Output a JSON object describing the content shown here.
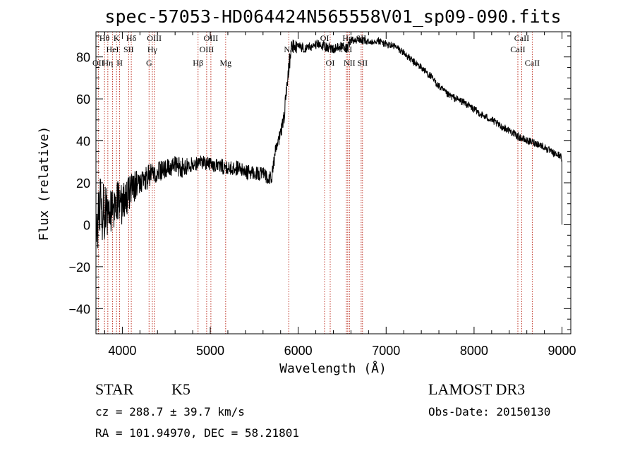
{
  "chart_data": {
    "type": "line",
    "title": "spec-57053-HD064424N565558V01_sp09-090.fits",
    "xlabel": "Wavelength (Å)",
    "ylabel": "Flux (relative)",
    "xlim": [
      3700,
      9100
    ],
    "ylim": [
      -52,
      92
    ],
    "x_ticks": [
      4000,
      5000,
      6000,
      7000,
      8000,
      9000
    ],
    "y_ticks": [
      -40,
      -20,
      0,
      20,
      40,
      60,
      80
    ],
    "grid": false,
    "spectrum_anchors": {
      "x": [
        3700,
        3750,
        3800,
        3850,
        3900,
        3950,
        4000,
        4050,
        4100,
        4200,
        4300,
        4400,
        4500,
        4600,
        4700,
        4800,
        4900,
        5000,
        5100,
        5200,
        5300,
        5400,
        5500,
        5600,
        5700,
        5720,
        5760,
        5800,
        5840,
        5880,
        5920,
        6000,
        6100,
        6200,
        6300,
        6400,
        6500,
        6560,
        6600,
        6700,
        6800,
        6900,
        7000,
        7100,
        7200,
        7300,
        7400,
        7500,
        7600,
        7700,
        7800,
        7900,
        8000,
        8100,
        8200,
        8300,
        8400,
        8500,
        8600,
        8700,
        8800,
        8900,
        8980,
        9000
      ],
      "y": [
        -2,
        8,
        5,
        10,
        7,
        12,
        9,
        14,
        17,
        20,
        23,
        25,
        27,
        28,
        27,
        29,
        30,
        29,
        28,
        27,
        27,
        25,
        25,
        24,
        22,
        30,
        38,
        43,
        52,
        70,
        84,
        85,
        84,
        86,
        85,
        84,
        85,
        84,
        88,
        88,
        87,
        88,
        86,
        85,
        82,
        78,
        75,
        71,
        66,
        62,
        60,
        58,
        55,
        52,
        50,
        47,
        45,
        42,
        40,
        39,
        37,
        34,
        33,
        31
      ],
      "noise": [
        12,
        12,
        12,
        11,
        10,
        9,
        8,
        8,
        7,
        5,
        5,
        4,
        4,
        4,
        4,
        3,
        3,
        3,
        3,
        3,
        3,
        3,
        3,
        3,
        3,
        3,
        3,
        3,
        3,
        4,
        4,
        2,
        2,
        2,
        2,
        2,
        2,
        2,
        1.5,
        1.5,
        1.5,
        1.5,
        1.5,
        1.5,
        1.5,
        1.5,
        1.5,
        1.5,
        1.5,
        1.5,
        1.5,
        1.5,
        1.5,
        1.5,
        1.5,
        1.5,
        1.5,
        1.5,
        1.5,
        1.5,
        1.5,
        1.5,
        1.5,
        1.5
      ]
    },
    "spectral_lines": [
      {
        "label": "OII",
        "wavelength": 3727,
        "row": 2
      },
      {
        "label": "Hθ",
        "wavelength": 3797,
        "row": 0
      },
      {
        "label": "Hη",
        "wavelength": 3835,
        "row": 2
      },
      {
        "label": "HeI",
        "wavelength": 3889,
        "row": 1
      },
      {
        "label": "K",
        "wavelength": 3934,
        "row": 0
      },
      {
        "label": "H",
        "wavelength": 3969,
        "row": 2
      },
      {
        "label": "SII",
        "wavelength": 4072,
        "row": 1
      },
      {
        "label": "Hδ",
        "wavelength": 4102,
        "row": 0
      },
      {
        "label": "G",
        "wavelength": 4304,
        "row": 2
      },
      {
        "label": "Hγ",
        "wavelength": 4341,
        "row": 1
      },
      {
        "label": "OIII",
        "wavelength": 4363,
        "row": 0
      },
      {
        "label": "Hβ",
        "wavelength": 4861,
        "row": 2
      },
      {
        "label": "OIII",
        "wavelength": 4959,
        "row": 1
      },
      {
        "label": "OIII",
        "wavelength": 5007,
        "row": 0
      },
      {
        "label": "Mg",
        "wavelength": 5175,
        "row": 2
      },
      {
        "label": "Na",
        "wavelength": 5893,
        "row": 1
      },
      {
        "label": "OI",
        "wavelength": 6300,
        "row": 0
      },
      {
        "label": "OI",
        "wavelength": 6364,
        "row": 2
      },
      {
        "label": "NII",
        "wavelength": 6548,
        "row": 1
      },
      {
        "label": "Hα",
        "wavelength": 6563,
        "row": 0
      },
      {
        "label": "NII",
        "wavelength": 6583,
        "row": 2
      },
      {
        "label": "SII",
        "wavelength": 6716,
        "row": 0
      },
      {
        "label": "SII",
        "wavelength": 6731,
        "row": 2
      },
      {
        "label": "CaII",
        "wavelength": 8498,
        "row": 1
      },
      {
        "label": "CaII",
        "wavelength": 8542,
        "row": 0
      },
      {
        "label": "CaII",
        "wavelength": 8662,
        "row": 2
      }
    ]
  },
  "info": {
    "object_class": "STAR",
    "subclass": "K5",
    "survey": "LAMOST DR3",
    "redshift_line": "cz = 288.7 ± 39.7 km/s",
    "obs_date_line": "Obs-Date: 20150130",
    "coords_line": "RA = 101.94970, DEC =  58.21801"
  }
}
